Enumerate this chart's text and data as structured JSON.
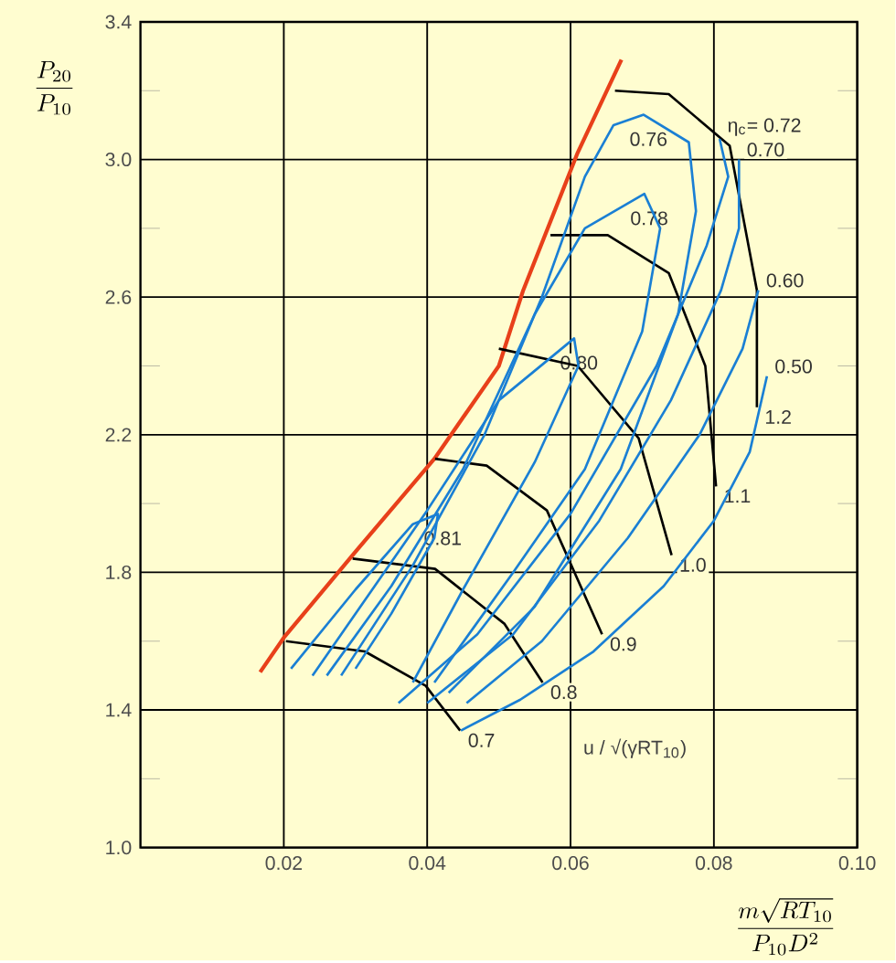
{
  "chart_data": {
    "type": "line",
    "xlabel": "\\frac{m\\sqrt{RT_{10}}}{P_{10}D^{2}}",
    "ylabel": "\\frac{P_{20}}{P_{10}}",
    "xlim": [
      0,
      0.1
    ],
    "ylim": [
      1.0,
      3.4
    ],
    "xticks": [
      {
        "value": 0.02,
        "label": "0.02"
      },
      {
        "value": 0.04,
        "label": "0.04"
      },
      {
        "value": 0.06,
        "label": "0.06"
      },
      {
        "value": 0.08,
        "label": "0.08"
      },
      {
        "value": 0.1,
        "label": "0.10"
      }
    ],
    "yticks": [
      {
        "value": 1.0,
        "label": "1.0"
      },
      {
        "value": 1.2,
        "label": null
      },
      {
        "value": 1.4,
        "label": "1.4"
      },
      {
        "value": 1.6,
        "label": null
      },
      {
        "value": 1.8,
        "label": "1.8"
      },
      {
        "value": 2.0,
        "label": null
      },
      {
        "value": 2.2,
        "label": "2.2"
      },
      {
        "value": 2.4,
        "label": null
      },
      {
        "value": 2.6,
        "label": "2.6"
      },
      {
        "value": 2.8,
        "label": null
      },
      {
        "value": 3.0,
        "label": "3.0"
      },
      {
        "value": 3.2,
        "label": null
      },
      {
        "value": 3.4,
        "label": "3.4"
      }
    ],
    "grid": true,
    "marker": "none",
    "series": [
      {
        "color": "#e8401a",
        "x": [
          0.0167,
          0.02,
          0.03,
          0.041,
          0.05,
          0.0534,
          0.061,
          0.0671
        ],
        "values": [
          1.51,
          1.61,
          1.86,
          2.13,
          2.4,
          2.62,
          3.02,
          3.29
        ]
      },
      {
        "name": "0.7",
        "color": "#000000",
        "x": [
          0.0203,
          0.0313,
          0.0398,
          0.0446
        ],
        "values": [
          1.6,
          1.57,
          1.47,
          1.34
        ]
      },
      {
        "name": "0.8",
        "color": "#000000",
        "x": [
          0.0296,
          0.0411,
          0.0508,
          0.0561
        ],
        "values": [
          1.84,
          1.81,
          1.65,
          1.48
        ]
      },
      {
        "name": "0.9",
        "color": "#000000",
        "x": [
          0.0411,
          0.0483,
          0.0567,
          0.0644
        ],
        "values": [
          2.13,
          2.11,
          1.98,
          1.62
        ]
      },
      {
        "name": "1.0",
        "color": "#000000",
        "x": [
          0.05,
          0.061,
          0.0695,
          0.0741
        ],
        "values": [
          2.45,
          2.4,
          2.19,
          1.85
        ]
      },
      {
        "name": "1.1",
        "color": "#000000",
        "x": [
          0.0572,
          0.0652,
          0.0737,
          0.0788,
          0.0803
        ],
        "values": [
          2.78,
          2.78,
          2.67,
          2.4,
          2.05
        ]
      },
      {
        "name": "1.2",
        "color": "#000000",
        "x": [
          0.0662,
          0.0737,
          0.0822,
          0.086,
          0.086
        ],
        "values": [
          3.2,
          3.19,
          3.04,
          2.62,
          2.28
        ]
      },
      {
        "name": "0.81",
        "color": "#1a7fd4",
        "x": [
          0.021,
          0.03,
          0.038,
          0.0415,
          0.041,
          0.035,
          0.03
        ],
        "values": [
          1.52,
          1.75,
          1.94,
          1.97,
          1.9,
          1.68,
          1.52
        ]
      },
      {
        "name": "0.80",
        "color": "#1a7fd4",
        "x": [
          0.024,
          0.032,
          0.04,
          0.05,
          0.0605,
          0.0611,
          0.055,
          0.045,
          0.038
        ],
        "values": [
          1.5,
          1.74,
          1.98,
          2.3,
          2.48,
          2.4,
          2.12,
          1.75,
          1.48
        ]
      },
      {
        "name": "0.78",
        "color": "#1a7fd4",
        "x": [
          0.026,
          0.035,
          0.045,
          0.055,
          0.062,
          0.0703,
          0.0725,
          0.07,
          0.062,
          0.052,
          0.041
        ],
        "values": [
          1.5,
          1.76,
          2.1,
          2.55,
          2.8,
          2.9,
          2.8,
          2.5,
          2.1,
          1.8,
          1.48
        ]
      },
      {
        "name": "0.76",
        "color": "#1a7fd4",
        "x": [
          0.028,
          0.038,
          0.048,
          0.056,
          0.062,
          0.066,
          0.0702,
          0.0765,
          0.0775,
          0.075,
          0.067,
          0.055,
          0.043
        ],
        "values": [
          1.5,
          1.82,
          2.2,
          2.6,
          2.95,
          3.1,
          3.13,
          3.05,
          2.85,
          2.55,
          2.1,
          1.7,
          1.45
        ]
      },
      {
        "name": "η$_{c}$= 0.72",
        "color": "#1a7fd4",
        "x": [
          0.036,
          0.047,
          0.06,
          0.072,
          0.079,
          0.082,
          0.0808
        ],
        "values": [
          1.42,
          1.62,
          1.97,
          2.4,
          2.75,
          2.95,
          3.06
        ]
      },
      {
        "name": "0.70",
        "color": "#1a7fd4",
        "x": [
          0.04,
          0.052,
          0.064,
          0.074,
          0.081,
          0.0835,
          0.0835
        ],
        "values": [
          1.42,
          1.62,
          1.95,
          2.3,
          2.62,
          2.8,
          3.0
        ]
      },
      {
        "name": "0.60",
        "color": "#1a7fd4",
        "x": [
          0.0455,
          0.056,
          0.068,
          0.078,
          0.084,
          0.0862
        ],
        "values": [
          1.42,
          1.6,
          1.9,
          2.2,
          2.45,
          2.62
        ]
      },
      {
        "name": "0.50",
        "color": "#1a7fd4",
        "x": [
          0.0447,
          0.053,
          0.0632,
          0.073,
          0.08,
          0.085,
          0.0874
        ],
        "values": [
          1.34,
          1.43,
          1.57,
          1.76,
          1.95,
          2.15,
          2.37
        ]
      }
    ],
    "annotations": [
      "u / √(γRT$_{10}$)"
    ]
  }
}
